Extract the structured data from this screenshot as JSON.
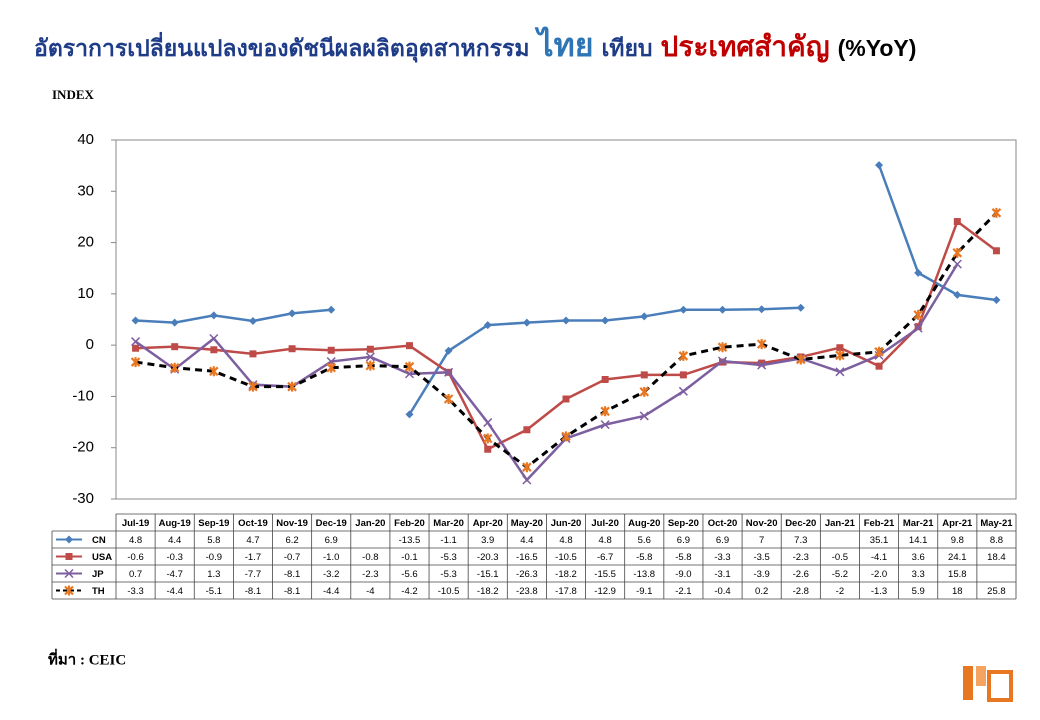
{
  "chart_data": {
    "type": "line",
    "title_parts": [
      {
        "text": "อัตราการเปลี่ยนแปลงของดัชนีผลผลิตอุตสาหกรรม",
        "color": "#1f3c88"
      },
      {
        "text": "ไทย",
        "color": "#2e75b6"
      },
      {
        "text": "เทียบ",
        "color": "#1f3c88"
      },
      {
        "text": "ประเทศสำคัญ",
        "color": "#c00000"
      },
      {
        "text": "(%YoY)",
        "color": "#000000"
      }
    ],
    "y_label": "INDEX",
    "source": "ที่มา : CEIC",
    "categories": [
      "Jul-19",
      "Aug-19",
      "Sep-19",
      "Oct-19",
      "Nov-19",
      "Dec-19",
      "Jan-20",
      "Feb-20",
      "Mar-20",
      "Apr-20",
      "May-20",
      "Jun-20",
      "Jul-20",
      "Aug-20",
      "Sep-20",
      "Oct-20",
      "Nov-20",
      "Dec-20",
      "Jan-21",
      "Feb-21",
      "Mar-21",
      "Apr-21",
      "May-21"
    ],
    "ylim": [
      -30,
      40
    ],
    "yticks": [
      -30,
      -20,
      -10,
      0,
      10,
      20,
      30,
      40
    ],
    "grid": false,
    "series": [
      {
        "name": "CN",
        "color": "#4a7ebb",
        "marker": "diamond",
        "dash": false,
        "values": [
          4.8,
          4.4,
          5.8,
          4.7,
          6.2,
          6.9,
          null,
          -13.5,
          -1.1,
          3.9,
          4.4,
          4.8,
          4.8,
          5.6,
          6.9,
          6.9,
          7,
          7.3,
          null,
          35.1,
          14.1,
          9.8,
          8.8
        ],
        "value_labels": [
          "4.8",
          "4.4",
          "5.8",
          "4.7",
          "6.2",
          "6.9",
          null,
          "-13.5",
          "-1.1",
          "3.9",
          "4.4",
          "4.8",
          "4.8",
          "5.6",
          "6.9",
          "6.9",
          "7",
          "7.3",
          null,
          "35.1",
          "14.1",
          "9.8",
          "8.8"
        ]
      },
      {
        "name": "USA",
        "color": "#be4b48",
        "marker": "square",
        "dash": false,
        "values": [
          -0.6,
          -0.3,
          -0.9,
          -1.7,
          -0.7,
          -1.0,
          -0.8,
          -0.1,
          -5.3,
          -20.3,
          -16.5,
          -10.5,
          -6.7,
          -5.8,
          -5.8,
          -3.3,
          -3.5,
          -2.3,
          -0.5,
          -4.1,
          3.6,
          24.1,
          18.4
        ],
        "value_labels": [
          "-0.6",
          "-0.3",
          "-0.9",
          "-1.7",
          "-0.7",
          "-1.0",
          "-0.8",
          "-0.1",
          "-5.3",
          "-20.3",
          "-16.5",
          "-10.5",
          "-6.7",
          "-5.8",
          "-5.8",
          "-3.3",
          "-3.5",
          "-2.3",
          "-0.5",
          "-4.1",
          "3.6",
          "24.1",
          "18.4"
        ]
      },
      {
        "name": "JP",
        "color": "#7d5fa0",
        "marker": "x",
        "dash": false,
        "values": [
          0.7,
          -4.7,
          1.3,
          -7.7,
          -8.1,
          -3.2,
          -2.3,
          -5.6,
          -5.3,
          -15.1,
          -26.3,
          -18.2,
          -15.5,
          -13.8,
          -9.0,
          -3.1,
          -3.9,
          -2.6,
          -5.2,
          -2.0,
          3.3,
          15.8,
          null
        ],
        "value_labels": [
          "0.7",
          "-4.7",
          "1.3",
          "-7.7",
          "-8.1",
          "-3.2",
          "-2.3",
          "-5.6",
          "-5.3",
          "-15.1",
          "-26.3",
          "-18.2",
          "-15.5",
          "-13.8",
          "-9.0",
          "-3.1",
          "-3.9",
          "-2.6",
          "-5.2",
          "-2.0",
          "3.3",
          "15.8",
          null
        ]
      },
      {
        "name": "TH",
        "color": "#000000",
        "marker": "star",
        "dash": true,
        "values": [
          -3.3,
          -4.4,
          -5.1,
          -8.1,
          -8.1,
          -4.4,
          -4,
          -4.2,
          -10.5,
          -18.2,
          -23.8,
          -17.8,
          -12.9,
          -9.1,
          -2.1,
          -0.4,
          0.2,
          -2.8,
          -2,
          -1.3,
          5.9,
          18,
          25.8
        ],
        "value_labels": [
          "-3.3",
          "-4.4",
          "-5.1",
          "-8.1",
          "-8.1",
          "-4.4",
          "-4",
          "-4.2",
          "-10.5",
          "-18.2",
          "-23.8",
          "-17.8",
          "-12.9",
          "-9.1",
          "-2.1",
          "-0.4",
          "0.2",
          "-2.8",
          "-2",
          "-1.3",
          "5.9",
          "18",
          "25.8"
        ]
      }
    ]
  }
}
